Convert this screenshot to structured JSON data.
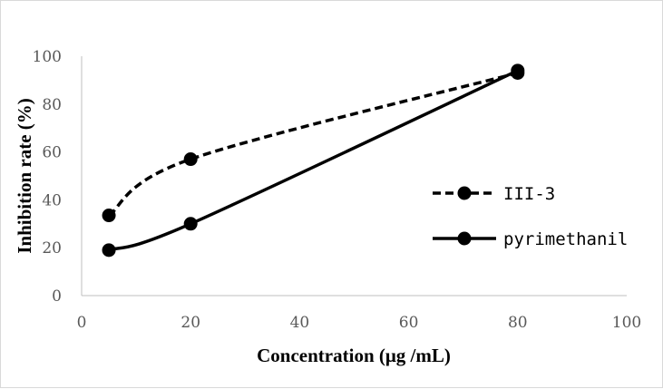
{
  "chart_data": {
    "type": "line",
    "title": "",
    "xlabel": "Concentration (μg /mL)",
    "ylabel": "Inhibition rate (%)",
    "xlim": [
      0,
      100
    ],
    "ylim": [
      0,
      100
    ],
    "xticks": [
      0,
      20,
      40,
      60,
      80,
      100
    ],
    "yticks": [
      0,
      20,
      40,
      60,
      80,
      100
    ],
    "grid": false,
    "legend_position": "right",
    "series": [
      {
        "name": "III-3",
        "style": "dashed",
        "color": "#000000",
        "x": [
          5,
          20,
          80
        ],
        "y": [
          33.5,
          57,
          93
        ]
      },
      {
        "name": "pyrimethanil",
        "style": "solid",
        "color": "#000000",
        "x": [
          5,
          20,
          80
        ],
        "y": [
          19,
          30,
          94
        ]
      }
    ]
  }
}
